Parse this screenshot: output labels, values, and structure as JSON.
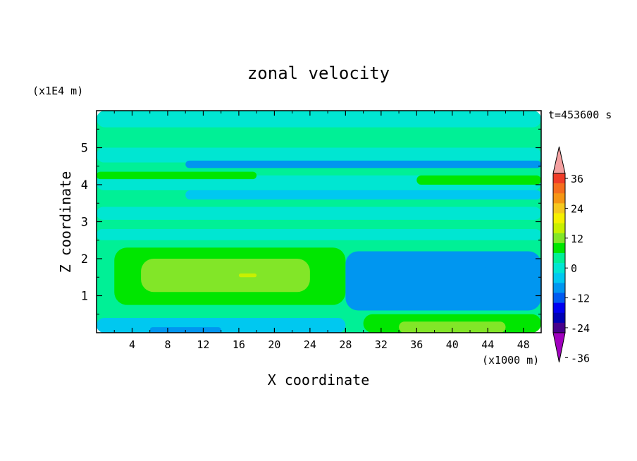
{
  "chart_data": {
    "type": "heatmap",
    "title": "zonal velocity",
    "xlabel": "X coordinate",
    "ylabel": "Z coordinate",
    "x_unit": "(x1000 m)",
    "y_unit": "(x1E4 m)",
    "time_label": "t=453600 s",
    "xlim": [
      0,
      50
    ],
    "ylim": [
      0,
      6
    ],
    "x_ticks": [
      4,
      8,
      12,
      16,
      20,
      24,
      28,
      32,
      36,
      40,
      44,
      48
    ],
    "x_tick_labels": [
      "4",
      "8",
      "12",
      "16",
      "20",
      "24",
      "28",
      "32",
      "36",
      "40",
      "44",
      "48"
    ],
    "y_ticks": [
      1,
      2,
      3,
      4,
      5
    ],
    "y_tick_labels": [
      "1",
      "2",
      "3",
      "4",
      "5"
    ],
    "colorbar": {
      "levels": [
        -36,
        -24,
        -12,
        0,
        12,
        24,
        36
      ],
      "tick_labels": [
        "36",
        "24",
        "12",
        "0",
        "-12",
        "-24",
        "-36"
      ],
      "colors_top_to_bottom": [
        "#f4a0a0",
        "#f03c28",
        "#f56e1e",
        "#f59614",
        "#f5c81e",
        "#f5f000",
        "#c8f000",
        "#82e628",
        "#00e600",
        "#00f096",
        "#00e6d2",
        "#00c8f0",
        "#0096f0",
        "#005af0",
        "#0000f0",
        "#0000b4",
        "#46008c",
        "#a000be"
      ]
    },
    "regions": [
      {
        "x0": 0,
        "x1": 50,
        "y0": 0,
        "y1": 6,
        "v": 4
      },
      {
        "x0": 0,
        "x1": 50,
        "y0": 5.55,
        "y1": 6,
        "v": 0
      },
      {
        "x0": 0,
        "x1": 50,
        "y0": 4.6,
        "y1": 5.0,
        "v": -3
      },
      {
        "x0": 10,
        "x1": 50,
        "y0": 4.45,
        "y1": 4.65,
        "v": -8
      },
      {
        "x0": 0,
        "x1": 50,
        "y0": 3.85,
        "y1": 4.25,
        "v": 0
      },
      {
        "x0": 0,
        "x1": 18,
        "y0": 4.15,
        "y1": 4.35,
        "v": 8
      },
      {
        "x0": 36,
        "x1": 50,
        "y0": 4.0,
        "y1": 4.25,
        "v": 8
      },
      {
        "x0": 10,
        "x1": 50,
        "y0": 3.6,
        "y1": 3.85,
        "v": -5
      },
      {
        "x0": 0,
        "x1": 50,
        "y0": 3.05,
        "y1": 3.4,
        "v": 0
      },
      {
        "x0": 0,
        "x1": 50,
        "y0": 2.5,
        "y1": 2.8,
        "v": -3
      },
      {
        "x0": 2,
        "x1": 28,
        "y0": 0.75,
        "y1": 2.3,
        "v": 8
      },
      {
        "x0": 5,
        "x1": 24,
        "y0": 1.1,
        "y1": 2.0,
        "v": 12
      },
      {
        "x0": 16,
        "x1": 18,
        "y0": 1.5,
        "y1": 1.6,
        "v": 16
      },
      {
        "x0": 28,
        "x1": 50,
        "y0": 0.6,
        "y1": 2.2,
        "v": -8
      },
      {
        "x0": 34,
        "x1": 44,
        "y0": 0.9,
        "y1": 1.9,
        "v": -11
      },
      {
        "x0": 0,
        "x1": 28,
        "y0": 0.0,
        "y1": 0.4,
        "v": -6
      },
      {
        "x0": 6,
        "x1": 14,
        "y0": 0.0,
        "y1": 0.15,
        "v": -11
      },
      {
        "x0": 30,
        "x1": 50,
        "y0": 0.0,
        "y1": 0.5,
        "v": 8
      },
      {
        "x0": 34,
        "x1": 46,
        "y0": 0.0,
        "y1": 0.3,
        "v": 12
      }
    ]
  }
}
